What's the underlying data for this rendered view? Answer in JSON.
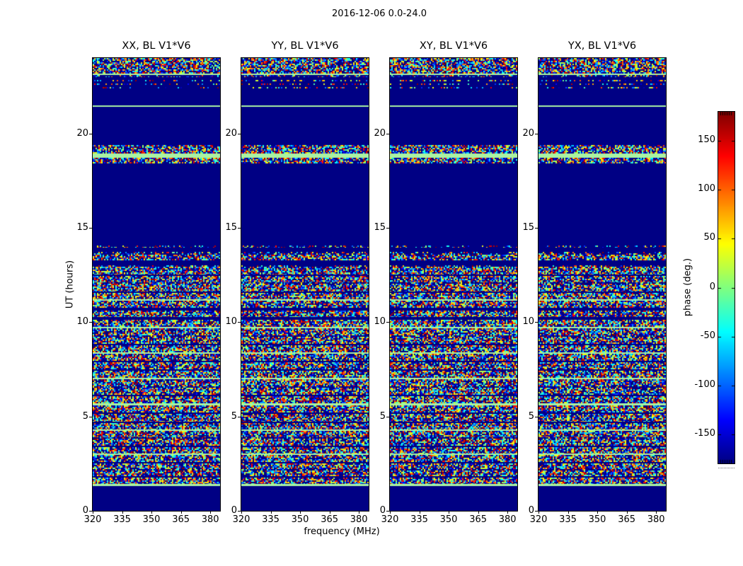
{
  "chart_data": {
    "type": "heatmap",
    "title": "2016-12-06 0.0-24.0",
    "panels": [
      "XX, BL V1*V6",
      "YY, BL V1*V6",
      "XY, BL V1*V6",
      "YX, BL V1*V6"
    ],
    "xlabel": "frequency (MHz)",
    "ylabel": "UT (hours)",
    "xticks": [
      320,
      335,
      350,
      365,
      380
    ],
    "yticks": [
      0,
      5,
      10,
      15,
      20
    ],
    "xlim": [
      320,
      385
    ],
    "ylim": [
      0,
      24
    ],
    "grid": false,
    "colormap": "jet",
    "colorbar_label": "phase (deg.)",
    "colorbar_ticks": [
      150,
      100,
      50,
      0,
      -50,
      -100,
      -150
    ],
    "value_range": [
      -180,
      180
    ],
    "bands": [
      {
        "t": [
          0.0,
          1.3
        ],
        "kind": "quiet"
      },
      {
        "t": [
          1.3,
          1.42
        ],
        "kind": "line"
      },
      {
        "t": [
          1.42,
          1.78
        ],
        "kind": "dense"
      },
      {
        "t": [
          1.78,
          1.85
        ],
        "kind": "quiet"
      },
      {
        "t": [
          1.85,
          2.12
        ],
        "kind": "dense"
      },
      {
        "t": [
          2.12,
          2.2
        ],
        "kind": "sparse"
      },
      {
        "t": [
          2.2,
          2.52
        ],
        "kind": "dense"
      },
      {
        "t": [
          2.52,
          2.6
        ],
        "kind": "quiet"
      },
      {
        "t": [
          2.6,
          2.95
        ],
        "kind": "dense"
      },
      {
        "t": [
          2.95,
          3.03
        ],
        "kind": "line"
      },
      {
        "t": [
          3.03,
          3.38
        ],
        "kind": "dense"
      },
      {
        "t": [
          3.38,
          3.46
        ],
        "kind": "quiet"
      },
      {
        "t": [
          3.46,
          3.82
        ],
        "kind": "dense"
      },
      {
        "t": [
          3.82,
          3.9
        ],
        "kind": "sparse"
      },
      {
        "t": [
          3.9,
          4.22
        ],
        "kind": "dense"
      },
      {
        "t": [
          4.22,
          4.3
        ],
        "kind": "line"
      },
      {
        "t": [
          4.3,
          4.66
        ],
        "kind": "dense"
      },
      {
        "t": [
          4.66,
          4.74
        ],
        "kind": "quiet"
      },
      {
        "t": [
          4.74,
          5.12
        ],
        "kind": "dense"
      },
      {
        "t": [
          5.12,
          5.2
        ],
        "kind": "quiet"
      },
      {
        "t": [
          5.2,
          5.58
        ],
        "kind": "dense"
      },
      {
        "t": [
          5.58,
          5.7
        ],
        "kind": "line"
      },
      {
        "t": [
          5.7,
          6.06
        ],
        "kind": "dense"
      },
      {
        "t": [
          6.06,
          6.14
        ],
        "kind": "quiet"
      },
      {
        "t": [
          6.14,
          6.52
        ],
        "kind": "dense"
      },
      {
        "t": [
          6.52,
          6.6
        ],
        "kind": "sparse"
      },
      {
        "t": [
          6.6,
          6.96
        ],
        "kind": "dense"
      },
      {
        "t": [
          6.96,
          7.04
        ],
        "kind": "line"
      },
      {
        "t": [
          7.04,
          7.42
        ],
        "kind": "dense"
      },
      {
        "t": [
          7.42,
          7.5
        ],
        "kind": "quiet"
      },
      {
        "t": [
          7.5,
          7.86
        ],
        "kind": "dense"
      },
      {
        "t": [
          7.86,
          7.94
        ],
        "kind": "quiet"
      },
      {
        "t": [
          7.94,
          8.32
        ],
        "kind": "dense"
      },
      {
        "t": [
          8.32,
          8.4
        ],
        "kind": "line"
      },
      {
        "t": [
          8.4,
          8.76
        ],
        "kind": "dense"
      },
      {
        "t": [
          8.76,
          8.84
        ],
        "kind": "quiet"
      },
      {
        "t": [
          8.84,
          9.22
        ],
        "kind": "dense"
      },
      {
        "t": [
          9.22,
          9.3
        ],
        "kind": "sparse"
      },
      {
        "t": [
          9.3,
          9.66
        ],
        "kind": "dense"
      },
      {
        "t": [
          9.66,
          9.74
        ],
        "kind": "line"
      },
      {
        "t": [
          9.74,
          10.12
        ],
        "kind": "dense"
      },
      {
        "t": [
          10.12,
          10.28
        ],
        "kind": "quiet"
      },
      {
        "t": [
          10.28,
          10.6
        ],
        "kind": "dense"
      },
      {
        "t": [
          10.6,
          10.78
        ],
        "kind": "quiet"
      },
      {
        "t": [
          10.78,
          11.12
        ],
        "kind": "dense"
      },
      {
        "t": [
          11.12,
          11.2
        ],
        "kind": "line"
      },
      {
        "t": [
          11.2,
          11.56
        ],
        "kind": "dense"
      },
      {
        "t": [
          11.56,
          11.64
        ],
        "kind": "quiet"
      },
      {
        "t": [
          11.64,
          12.02
        ],
        "kind": "dense"
      },
      {
        "t": [
          12.02,
          12.1
        ],
        "kind": "sparse"
      },
      {
        "t": [
          12.1,
          12.46
        ],
        "kind": "dense"
      },
      {
        "t": [
          12.46,
          12.54
        ],
        "kind": "quiet"
      },
      {
        "t": [
          12.54,
          12.92
        ],
        "kind": "dense"
      },
      {
        "t": [
          12.92,
          13.02
        ],
        "kind": "sparse"
      },
      {
        "t": [
          13.02,
          13.28
        ],
        "kind": "quiet"
      },
      {
        "t": [
          13.28,
          13.58
        ],
        "kind": "dense"
      },
      {
        "t": [
          13.58,
          13.72
        ],
        "kind": "sparse"
      },
      {
        "t": [
          13.72,
          13.95
        ],
        "kind": "quiet"
      },
      {
        "t": [
          13.95,
          14.08
        ],
        "kind": "sparse"
      },
      {
        "t": [
          14.08,
          18.4
        ],
        "kind": "quiet"
      },
      {
        "t": [
          18.4,
          18.72
        ],
        "kind": "dense"
      },
      {
        "t": [
          18.72,
          18.95
        ],
        "kind": "line"
      },
      {
        "t": [
          18.95,
          19.4
        ],
        "kind": "dense"
      },
      {
        "t": [
          19.4,
          21.4
        ],
        "kind": "quiet"
      },
      {
        "t": [
          21.4,
          21.5
        ],
        "kind": "line"
      },
      {
        "t": [
          21.5,
          22.4
        ],
        "kind": "quiet"
      },
      {
        "t": [
          22.4,
          22.48
        ],
        "kind": "sparse"
      },
      {
        "t": [
          22.48,
          22.58
        ],
        "kind": "quiet"
      },
      {
        "t": [
          22.58,
          22.66
        ],
        "kind": "sparse"
      },
      {
        "t": [
          22.66,
          22.76
        ],
        "kind": "quiet"
      },
      {
        "t": [
          22.76,
          22.84
        ],
        "kind": "sparse"
      },
      {
        "t": [
          22.84,
          22.98
        ],
        "kind": "quiet"
      },
      {
        "t": [
          22.98,
          23.1
        ],
        "kind": "sparse"
      },
      {
        "t": [
          23.1,
          23.16
        ],
        "kind": "line"
      },
      {
        "t": [
          23.16,
          24.0
        ],
        "kind": "dense"
      }
    ]
  },
  "style": {
    "background": "#ffffff",
    "quiet_color": "#000084",
    "line_color": "#aaf2a2",
    "frame_color": "#000000",
    "text_color": "#000000"
  }
}
